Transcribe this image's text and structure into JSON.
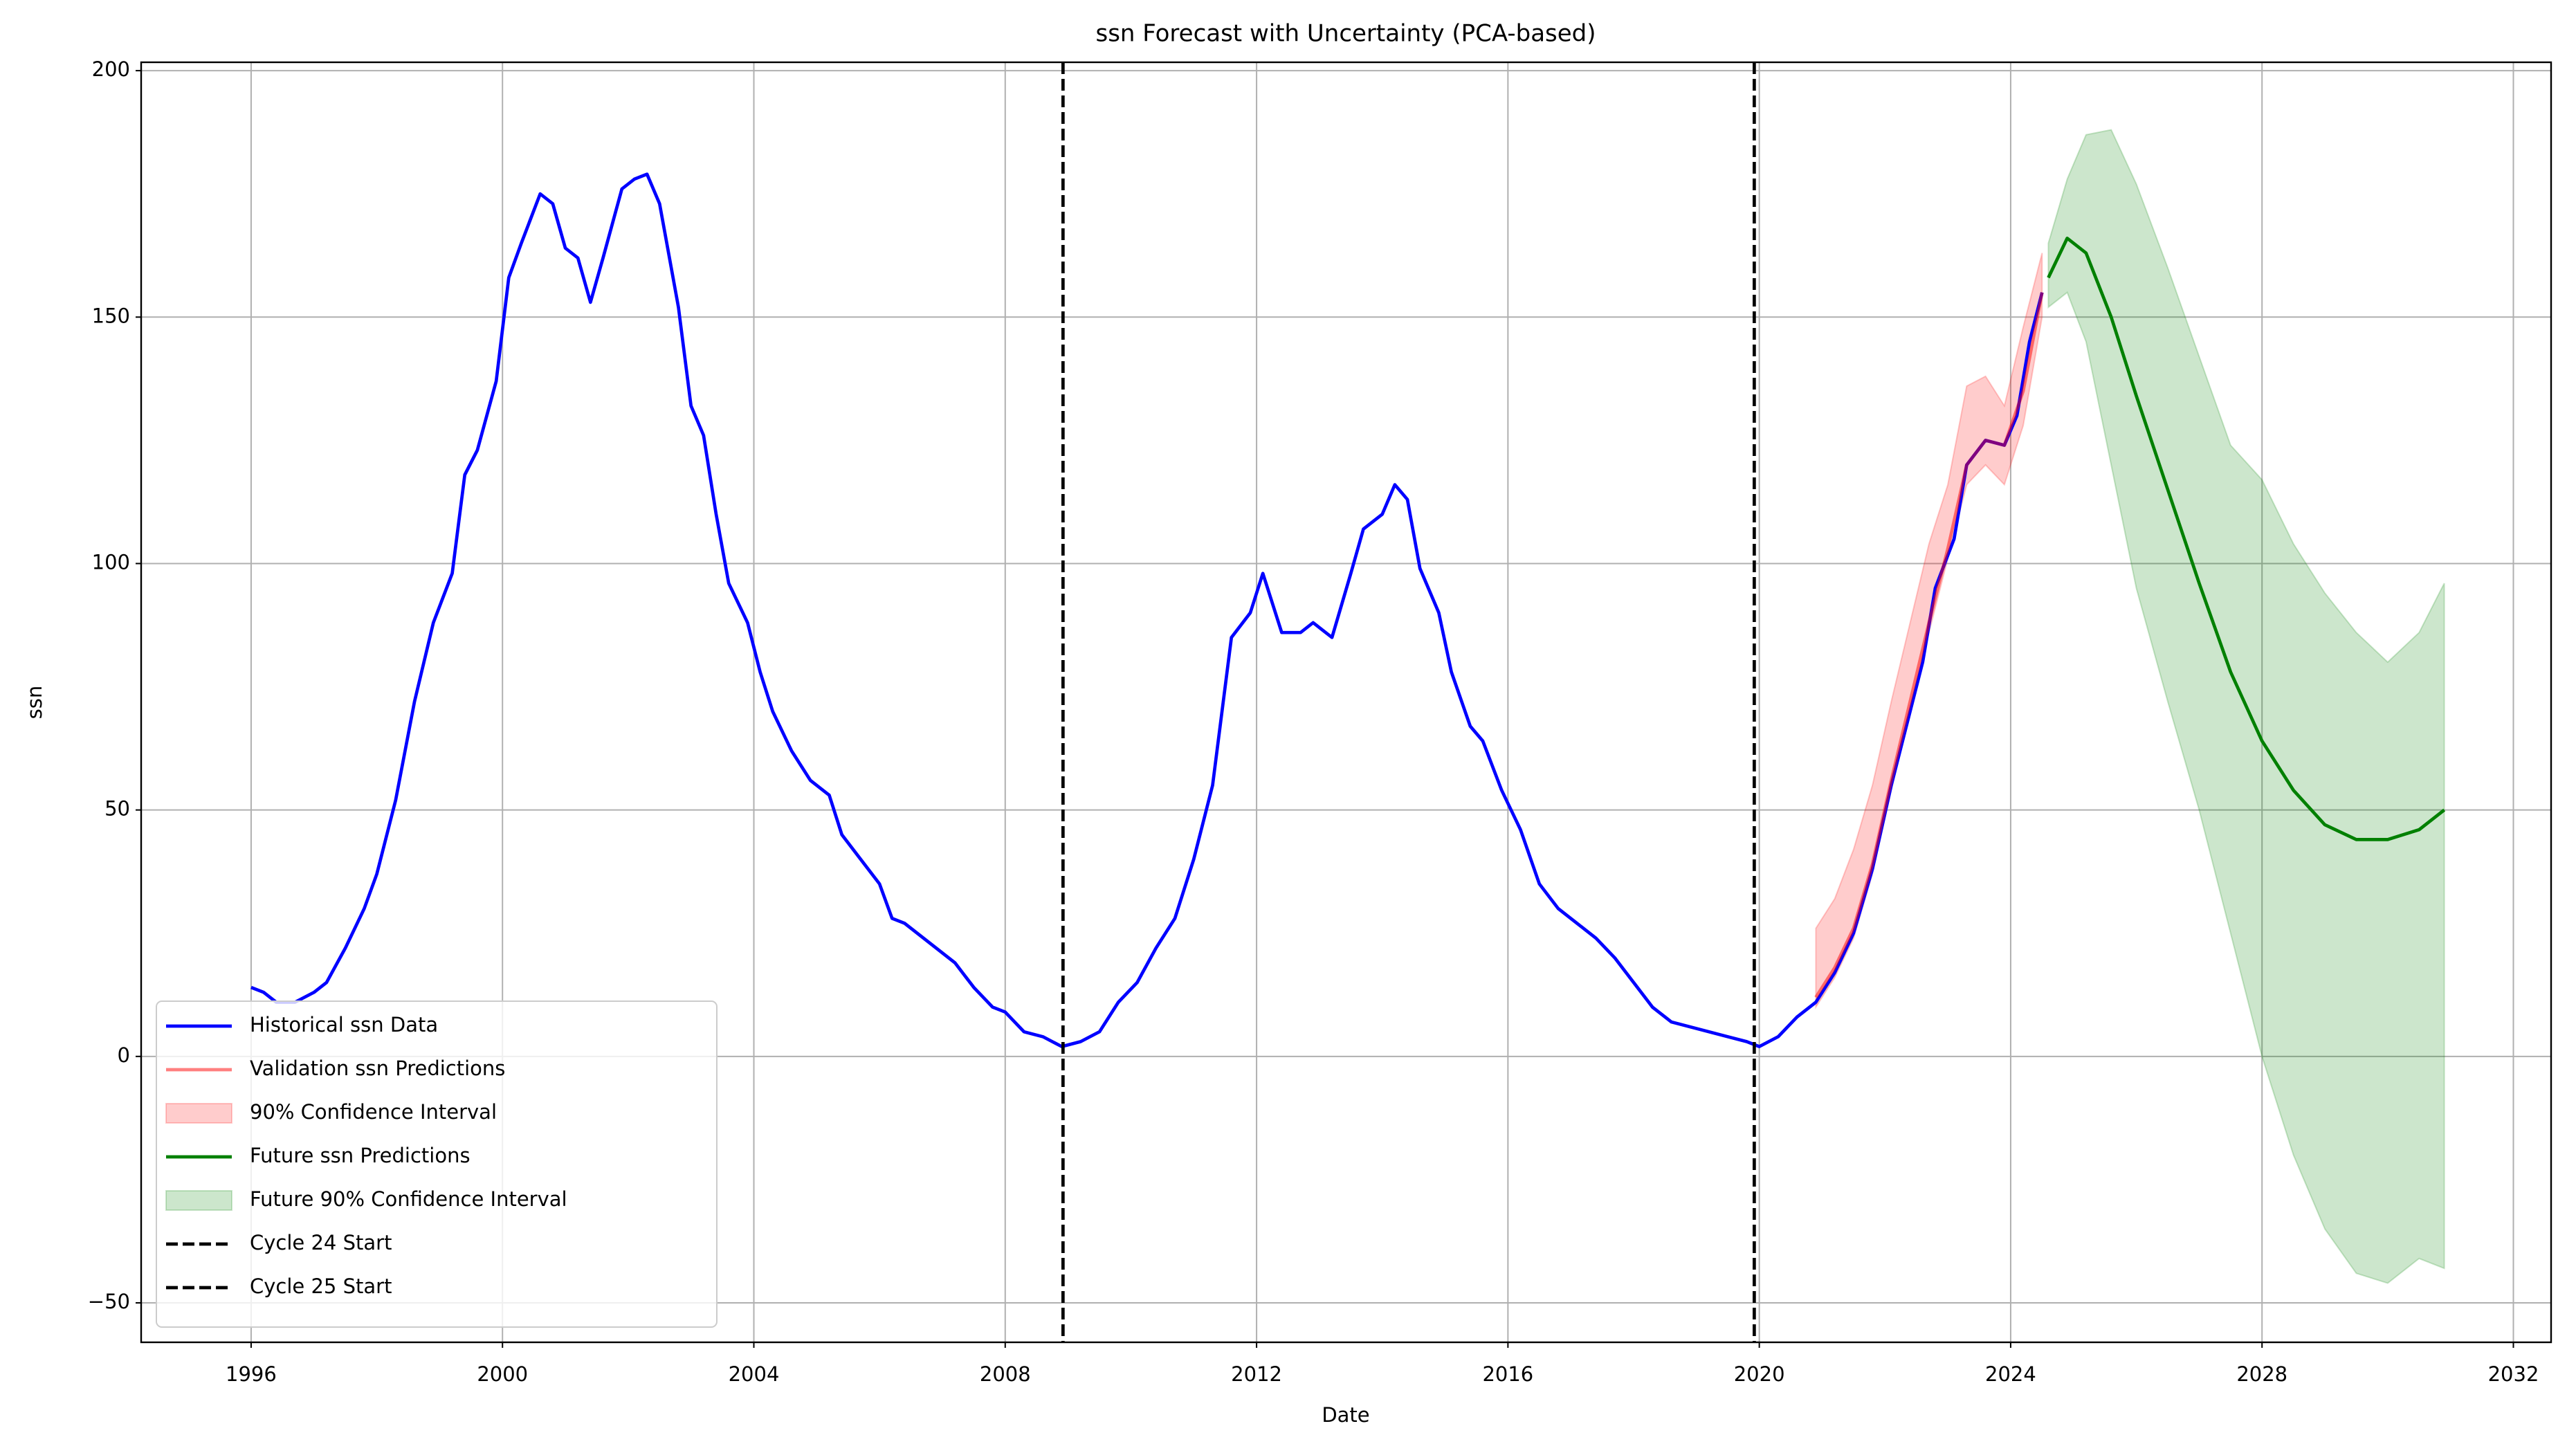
{
  "chart_data": {
    "type": "line",
    "title": "ssn Forecast with Uncertainty (PCA-based)",
    "xlabel": "Date",
    "ylabel": "ssn",
    "xlim": [
      1994.25,
      2032.6
    ],
    "ylim": [
      -58,
      201.7
    ],
    "xticks": [
      1996,
      2000,
      2004,
      2008,
      2012,
      2016,
      2020,
      2024,
      2028,
      2032
    ],
    "yticks": [
      {
        "value": -50,
        "label": "−50"
      },
      0,
      50,
      100,
      150,
      200
    ],
    "grid": true,
    "legend": "lower left",
    "series": [
      {
        "name": "Historical ssn Data",
        "kind": "line",
        "color": "#0000ff",
        "alpha": 1,
        "x": [
          1996.0,
          1996.2,
          1996.4,
          1996.7,
          1997.0,
          1997.2,
          1997.5,
          1997.8,
          1998.0,
          1998.3,
          1998.6,
          1998.9,
          1999.2,
          1999.4,
          1999.6,
          1999.9,
          2000.1,
          2000.3,
          2000.6,
          2000.8,
          2001.0,
          2001.2,
          2001.4,
          2001.6,
          2001.9,
          2002.1,
          2002.3,
          2002.5,
          2002.8,
          2003.0,
          2003.2,
          2003.4,
          2003.6,
          2003.9,
          2004.1,
          2004.3,
          2004.6,
          2004.9,
          2005.2,
          2005.4,
          2005.7,
          2006.0,
          2006.2,
          2006.4,
          2006.6,
          2006.9,
          2007.2,
          2007.5,
          2007.8,
          2008.0,
          2008.3,
          2008.6,
          2008.9,
          2009.2,
          2009.5,
          2009.8,
          2010.1,
          2010.4,
          2010.7,
          2011.0,
          2011.3,
          2011.6,
          2011.9,
          2012.1,
          2012.4,
          2012.7,
          2012.9,
          2013.2,
          2013.5,
          2013.7,
          2014.0,
          2014.2,
          2014.4,
          2014.6,
          2014.9,
          2015.1,
          2015.4,
          2015.6,
          2015.9,
          2016.2,
          2016.5,
          2016.8,
          2017.1,
          2017.4,
          2017.7,
          2018.0,
          2018.3,
          2018.6,
          2018.9,
          2019.2,
          2019.5,
          2019.8,
          2020.0,
          2020.3,
          2020.6,
          2020.9,
          2021.2,
          2021.5,
          2021.8,
          2022.1,
          2022.4,
          2022.6,
          2022.8,
          2023.1,
          2023.3,
          2023.6,
          2023.9,
          2024.1,
          2024.3,
          2024.5
        ],
        "values": [
          14,
          13,
          11,
          11,
          13,
          15,
          22,
          30,
          37,
          52,
          72,
          88,
          98,
          118,
          123,
          137,
          158,
          165,
          175,
          173,
          164,
          162,
          153,
          162,
          176,
          178,
          179,
          173,
          152,
          132,
          126,
          110,
          96,
          88,
          78,
          70,
          62,
          56,
          53,
          45,
          40,
          35,
          28,
          27,
          25,
          22,
          19,
          14,
          10,
          9,
          5,
          4,
          2,
          3,
          5,
          11,
          15,
          22,
          28,
          40,
          55,
          85,
          90,
          98,
          86,
          86,
          88,
          85,
          98,
          107,
          110,
          116,
          113,
          99,
          90,
          78,
          67,
          64,
          54,
          46,
          35,
          30,
          27,
          24,
          20,
          15,
          10,
          7,
          6,
          5,
          4,
          3,
          2,
          4,
          8,
          11,
          17,
          25,
          38,
          55,
          70,
          80,
          95,
          105,
          120,
          125,
          124,
          130,
          145,
          155
        ]
      },
      {
        "name": "Validation ssn Predictions",
        "kind": "line",
        "color": "#ff0000",
        "alpha": 0.5,
        "x": [
          2020.9,
          2021.2,
          2021.5,
          2021.8,
          2022.1,
          2022.4,
          2022.7,
          2023.0,
          2023.3,
          2023.6,
          2023.9,
          2024.2,
          2024.5
        ],
        "values": [
          12,
          18,
          26,
          39,
          56,
          72,
          88,
          103,
          120,
          125,
          124,
          135,
          155
        ]
      },
      {
        "name": "90% Confidence Interval",
        "kind": "band",
        "color": "#ff0000",
        "alpha": 0.2,
        "x": [
          2020.9,
          2021.2,
          2021.5,
          2021.8,
          2022.1,
          2022.4,
          2022.7,
          2023.0,
          2023.3,
          2023.6,
          2023.9,
          2024.2,
          2024.5
        ],
        "lower": [
          10,
          16,
          24,
          37,
          54,
          70,
          86,
          101,
          116,
          120,
          116,
          128,
          150
        ],
        "upper": [
          26,
          32,
          42,
          55,
          72,
          88,
          104,
          116,
          136,
          138,
          132,
          148,
          163
        ]
      },
      {
        "name": "Future ssn Predictions",
        "kind": "line",
        "color": "#008000",
        "alpha": 1,
        "x": [
          2024.6,
          2024.9,
          2025.2,
          2025.6,
          2026.0,
          2026.5,
          2027.0,
          2027.5,
          2028.0,
          2028.5,
          2029.0,
          2029.5,
          2030.0,
          2030.5,
          2030.9
        ],
        "values": [
          158,
          166,
          163,
          150,
          134,
          115,
          96,
          78,
          64,
          54,
          47,
          44,
          44,
          46,
          50
        ]
      },
      {
        "name": "Future 90% Confidence Interval",
        "kind": "band",
        "color": "#008000",
        "alpha": 0.2,
        "x": [
          2024.6,
          2024.9,
          2025.2,
          2025.6,
          2026.0,
          2026.5,
          2027.0,
          2027.5,
          2028.0,
          2028.5,
          2029.0,
          2029.5,
          2030.0,
          2030.5,
          2030.9
        ],
        "lower": [
          152,
          155,
          145,
          120,
          95,
          72,
          50,
          25,
          0,
          -20,
          -35,
          -44,
          -46,
          -41,
          -43
        ],
        "upper": [
          165,
          178,
          187,
          188,
          177,
          160,
          142,
          124,
          117,
          104,
          94,
          86,
          80,
          86,
          96
        ]
      },
      {
        "name": "Cycle 24 Start",
        "kind": "vline",
        "color": "#000000",
        "alpha": 1,
        "x": 2008.92
      },
      {
        "name": "Cycle 25 Start",
        "kind": "vline",
        "color": "#000000",
        "alpha": 1,
        "x": 2019.92
      }
    ]
  }
}
